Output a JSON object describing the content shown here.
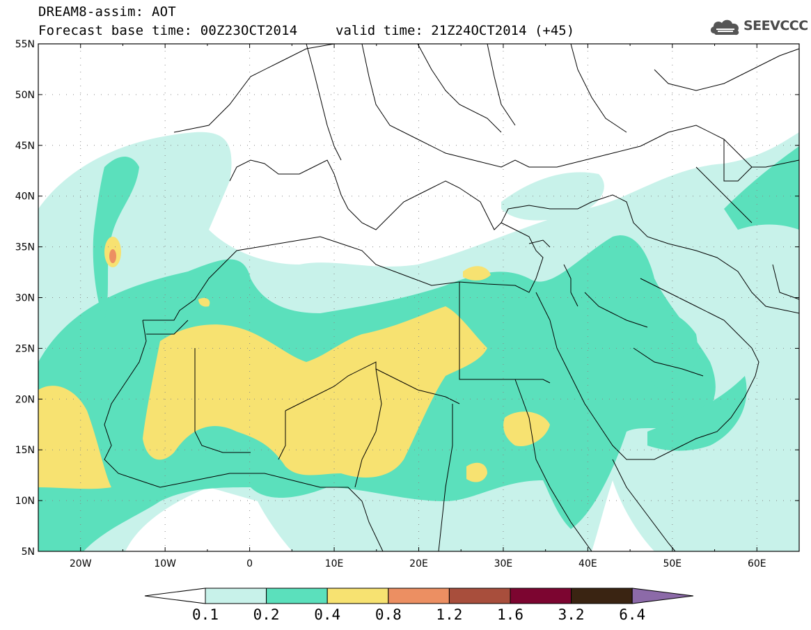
{
  "header": {
    "line1": "DREAM8-assim: AOT",
    "line2": "Forecast base time: 00Z23OCT2014",
    "valid": "valid time: 21Z24OCT2014 (+45)",
    "logo_text": "SEEVCCC",
    "logo_icon": "cloud-logo-icon"
  },
  "map": {
    "lon_range": [
      -25,
      65
    ],
    "lat_range": [
      5,
      55
    ],
    "lon_ticks": [
      {
        "value": -20,
        "label": "20W"
      },
      {
        "value": -10,
        "label": "10W"
      },
      {
        "value": 0,
        "label": "0"
      },
      {
        "value": 10,
        "label": "10E"
      },
      {
        "value": 20,
        "label": "20E"
      },
      {
        "value": 30,
        "label": "30E"
      },
      {
        "value": 40,
        "label": "40E"
      },
      {
        "value": 50,
        "label": "50E"
      },
      {
        "value": 60,
        "label": "60E"
      }
    ],
    "lat_ticks": [
      {
        "value": 5,
        "label": "5N"
      },
      {
        "value": 10,
        "label": "10N"
      },
      {
        "value": 15,
        "label": "15N"
      },
      {
        "value": 20,
        "label": "20N"
      },
      {
        "value": 25,
        "label": "25N"
      },
      {
        "value": 30,
        "label": "30N"
      },
      {
        "value": 35,
        "label": "35N"
      },
      {
        "value": 40,
        "label": "40N"
      },
      {
        "value": 45,
        "label": "45N"
      },
      {
        "value": 50,
        "label": "50N"
      },
      {
        "value": 55,
        "label": "55N"
      }
    ],
    "grid": true
  },
  "colors": {
    "c1": "#c8f2ea",
    "c2": "#5be0bc",
    "c3": "#f7e271",
    "c4": "#ec8f62",
    "c5": "#a84e3c",
    "c6": "#7c0530",
    "c7": "#3a2412",
    "c8": "#8c6aa8",
    "border": "#000000"
  },
  "colorbar": {
    "labels": [
      "0.1",
      "0.2",
      "0.4",
      "0.8",
      "1.2",
      "1.6",
      "3.2",
      "6.4"
    ],
    "fills": [
      "#c8f2ea",
      "#5be0bc",
      "#f7e271",
      "#ec8f62",
      "#a84e3c",
      "#7c0530",
      "#3a2412"
    ]
  }
}
